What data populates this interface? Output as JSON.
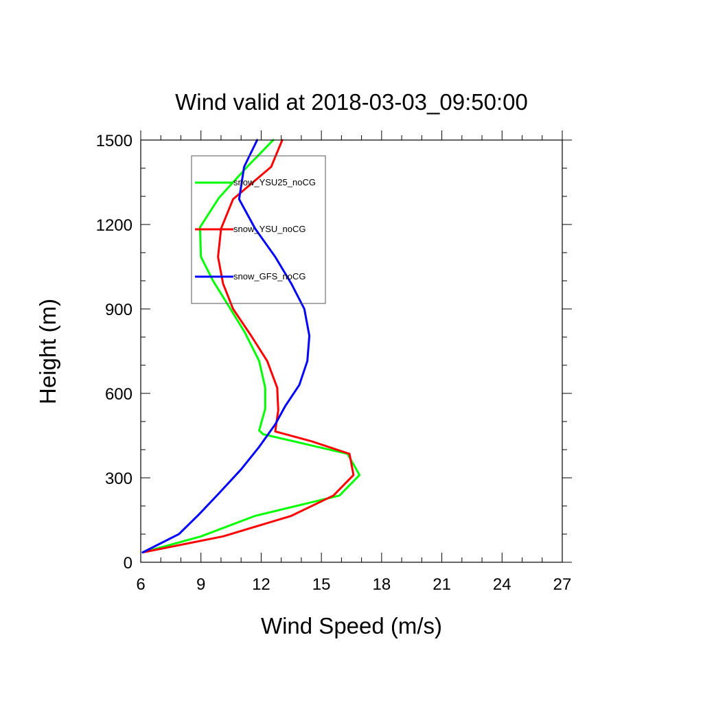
{
  "chart_data": {
    "type": "line",
    "title": "Wind valid at 2018-03-03_09:50:00",
    "xlabel": "Wind Speed (m/s)",
    "ylabel": "Height (m)",
    "xlim": [
      6,
      27
    ],
    "ylim": [
      0,
      1500
    ],
    "xticks": [
      6,
      9,
      12,
      15,
      18,
      21,
      24,
      27
    ],
    "yticks": [
      0,
      300,
      600,
      900,
      1200,
      1500
    ],
    "x_minor_step": 1,
    "y_minor_step": 100,
    "legend_position": "top-left",
    "series": [
      {
        "name": "snow_YSU25_noCG",
        "color": "#00ff00",
        "points": [
          [
            6.1,
            35
          ],
          [
            9.0,
            92
          ],
          [
            11.7,
            165
          ],
          [
            15.9,
            237
          ],
          [
            16.9,
            310
          ],
          [
            16.3,
            385
          ],
          [
            12.1,
            455
          ],
          [
            11.9,
            468
          ],
          [
            12.2,
            545
          ],
          [
            12.2,
            620
          ],
          [
            11.9,
            715
          ],
          [
            11.2,
            815
          ],
          [
            10.3,
            920
          ],
          [
            9.6,
            1000
          ],
          [
            9.0,
            1085
          ],
          [
            8.95,
            1190
          ],
          [
            9.9,
            1295
          ],
          [
            11.3,
            1405
          ],
          [
            12.6,
            1500
          ]
        ]
      },
      {
        "name": "snow_YSU_noCG",
        "color": "#ff0000",
        "points": [
          [
            6.1,
            35
          ],
          [
            10.1,
            92
          ],
          [
            13.5,
            165
          ],
          [
            15.6,
            237
          ],
          [
            16.6,
            310
          ],
          [
            16.4,
            385
          ],
          [
            14.5,
            430
          ],
          [
            12.7,
            465
          ],
          [
            12.85,
            540
          ],
          [
            12.8,
            620
          ],
          [
            12.3,
            715
          ],
          [
            11.5,
            805
          ],
          [
            10.6,
            900
          ],
          [
            10.1,
            990
          ],
          [
            9.85,
            1085
          ],
          [
            10.0,
            1185
          ],
          [
            10.6,
            1290
          ],
          [
            12.5,
            1405
          ],
          [
            13.05,
            1500
          ]
        ]
      },
      {
        "name": "snow_GFS_noCG",
        "color": "#0000ff",
        "points": [
          [
            6.1,
            35
          ],
          [
            7.9,
            100
          ],
          [
            8.9,
            170
          ],
          [
            9.9,
            245
          ],
          [
            11.0,
            330
          ],
          [
            11.9,
            410
          ],
          [
            12.7,
            490
          ],
          [
            13.2,
            555
          ],
          [
            13.9,
            630
          ],
          [
            14.3,
            715
          ],
          [
            14.4,
            805
          ],
          [
            14.15,
            900
          ],
          [
            13.5,
            990
          ],
          [
            12.7,
            1085
          ],
          [
            11.7,
            1185
          ],
          [
            10.9,
            1290
          ],
          [
            11.15,
            1405
          ],
          [
            11.8,
            1500
          ]
        ]
      }
    ]
  }
}
